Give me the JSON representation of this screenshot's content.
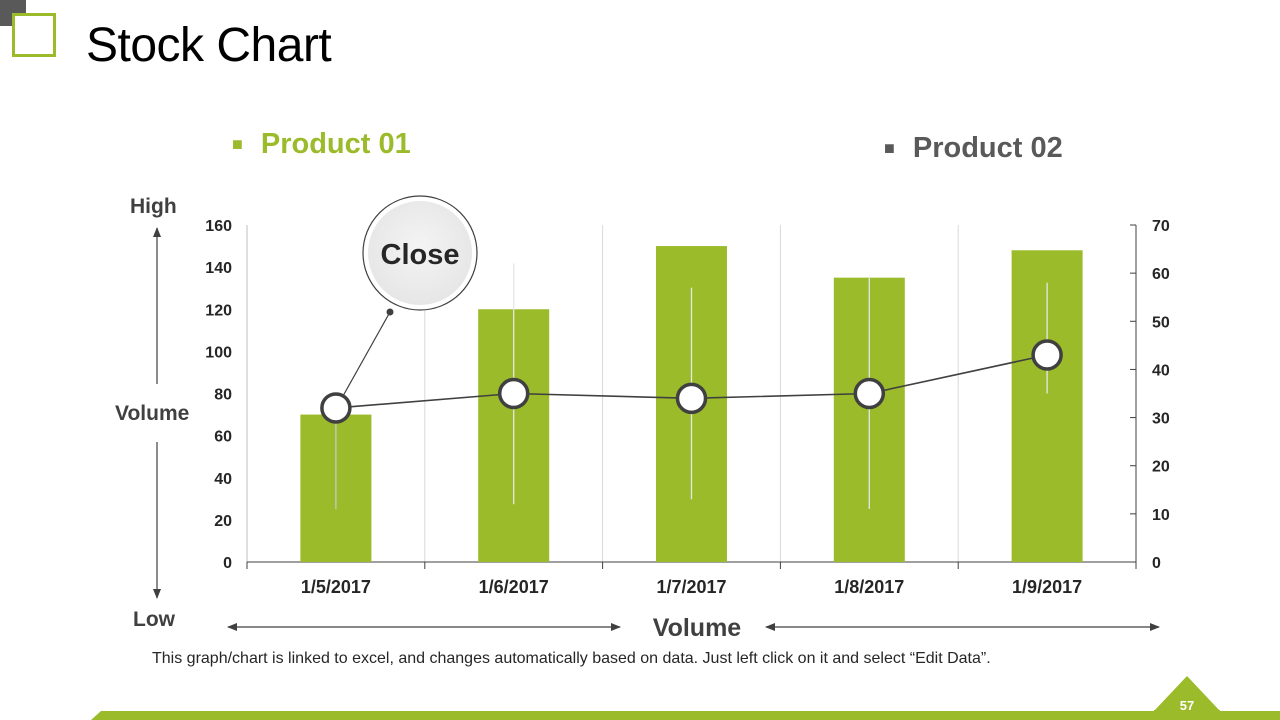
{
  "slide": {
    "title": "Stock Chart",
    "footnote": "This graph/chart is linked to excel, and changes automatically based on data. Just left click on it and select “Edit Data”.",
    "page_number": "57",
    "accent_color": "#9bbb2a",
    "dark_color": "#595959"
  },
  "legend": [
    {
      "label": "Product 01",
      "color": "#9bbb2a"
    },
    {
      "label": "Product 02",
      "color": "#595959"
    }
  ],
  "labels": {
    "high": "High",
    "volume_left": "Volume",
    "low": "Low",
    "volume_bottom": "Volume",
    "callout": "Close"
  },
  "chart_data": {
    "type": "bar",
    "categories": [
      "1/5/2017",
      "1/6/2017",
      "1/7/2017",
      "1/8/2017",
      "1/9/2017"
    ],
    "series": [
      {
        "name": "Volume",
        "axis": "left",
        "values": [
          70,
          120,
          150,
          135,
          148
        ],
        "color": "#9bbb2a"
      },
      {
        "name": "High",
        "axis": "right",
        "values": [
          null,
          62,
          57,
          59,
          58
        ]
      },
      {
        "name": "Low",
        "axis": "right",
        "values": [
          11,
          12,
          13,
          11,
          35
        ]
      },
      {
        "name": "Close",
        "axis": "right",
        "type": "line",
        "values": [
          32,
          35,
          34,
          35,
          43
        ]
      }
    ],
    "y_left": {
      "min": 0,
      "max": 160,
      "step": 20,
      "ticks": [
        "0",
        "20",
        "40",
        "60",
        "80",
        "100",
        "120",
        "140",
        "160"
      ]
    },
    "y_right": {
      "min": 0,
      "max": 70,
      "step": 10,
      "ticks": [
        "0",
        "10",
        "20",
        "30",
        "40",
        "50",
        "60",
        "70"
      ]
    },
    "grid": "vertical"
  }
}
